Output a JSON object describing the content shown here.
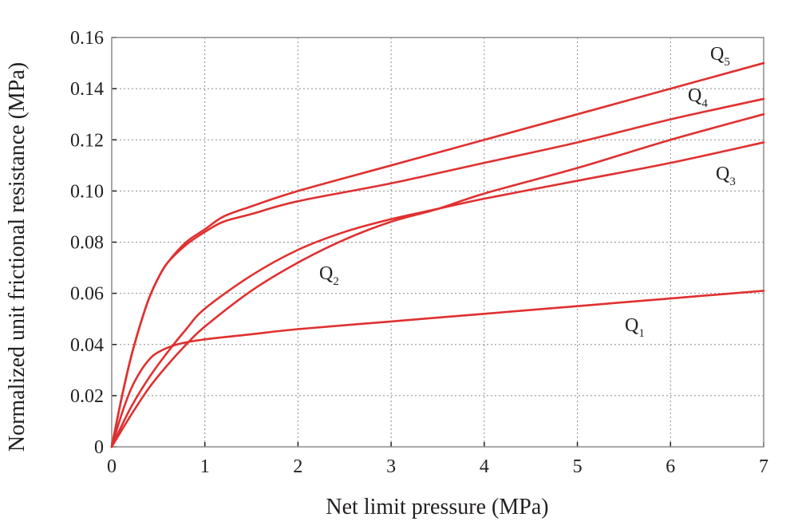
{
  "chart_data": {
    "type": "line",
    "xlabel": "Net limit pressure (MPa)",
    "ylabel": "Normalized unit frictional resistance (MPa)",
    "xlim": [
      0,
      7
    ],
    "ylim": [
      0,
      0.16
    ],
    "x_ticks": [
      "0",
      "1",
      "2",
      "3",
      "4",
      "5",
      "6",
      "7"
    ],
    "y_ticks": [
      "0",
      "0.02",
      "0.04",
      "0.06",
      "0.08",
      "0.10",
      "0.12",
      "0.14",
      "0.16"
    ],
    "grid": true,
    "line_color": "#e03030",
    "series": [
      {
        "name": "Q1",
        "label_main": "Q",
        "label_sub": "1",
        "points": [
          [
            0,
            0
          ],
          [
            0.1,
            0.012
          ],
          [
            0.2,
            0.022
          ],
          [
            0.3,
            0.029
          ],
          [
            0.4,
            0.034
          ],
          [
            0.5,
            0.037
          ],
          [
            0.7,
            0.04
          ],
          [
            1.0,
            0.042
          ],
          [
            1.5,
            0.044
          ],
          [
            2,
            0.046
          ],
          [
            3,
            0.049
          ],
          [
            4,
            0.052
          ],
          [
            5,
            0.055
          ],
          [
            6,
            0.058
          ],
          [
            7,
            0.061
          ]
        ]
      },
      {
        "name": "Q2",
        "label_main": "Q",
        "label_sub": "2",
        "points": [
          [
            0,
            0
          ],
          [
            0.2,
            0.015
          ],
          [
            0.4,
            0.027
          ],
          [
            0.6,
            0.037
          ],
          [
            0.8,
            0.046
          ],
          [
            1.0,
            0.054
          ],
          [
            1.5,
            0.067
          ],
          [
            2,
            0.077
          ],
          [
            2.5,
            0.084
          ],
          [
            3,
            0.089
          ],
          [
            3.5,
            0.093
          ],
          [
            4,
            0.097
          ],
          [
            5,
            0.104
          ],
          [
            6,
            0.111
          ],
          [
            7,
            0.119
          ]
        ]
      },
      {
        "name": "Q3",
        "label_main": "Q",
        "label_sub": "3",
        "points": [
          [
            0,
            0
          ],
          [
            0.2,
            0.012
          ],
          [
            0.4,
            0.023
          ],
          [
            0.6,
            0.032
          ],
          [
            0.8,
            0.04
          ],
          [
            1.0,
            0.047
          ],
          [
            1.5,
            0.061
          ],
          [
            2,
            0.072
          ],
          [
            2.5,
            0.081
          ],
          [
            3,
            0.088
          ],
          [
            3.5,
            0.093
          ],
          [
            4,
            0.099
          ],
          [
            5,
            0.109
          ],
          [
            6,
            0.12
          ],
          [
            7,
            0.13
          ]
        ]
      },
      {
        "name": "Q4",
        "label_main": "Q",
        "label_sub": "4",
        "points": [
          [
            0,
            0
          ],
          [
            0.1,
            0.018
          ],
          [
            0.2,
            0.034
          ],
          [
            0.3,
            0.047
          ],
          [
            0.4,
            0.058
          ],
          [
            0.5,
            0.066
          ],
          [
            0.6,
            0.072
          ],
          [
            0.8,
            0.079
          ],
          [
            1.0,
            0.084
          ],
          [
            1.2,
            0.088
          ],
          [
            1.5,
            0.091
          ],
          [
            2,
            0.096
          ],
          [
            3,
            0.103
          ],
          [
            4,
            0.111
          ],
          [
            5,
            0.119
          ],
          [
            6,
            0.128
          ],
          [
            7,
            0.136
          ]
        ]
      },
      {
        "name": "Q5",
        "label_main": "Q",
        "label_sub": "5",
        "points": [
          [
            0,
            0
          ],
          [
            0.1,
            0.018
          ],
          [
            0.2,
            0.034
          ],
          [
            0.3,
            0.047
          ],
          [
            0.4,
            0.058
          ],
          [
            0.5,
            0.066
          ],
          [
            0.6,
            0.072
          ],
          [
            0.8,
            0.08
          ],
          [
            1.0,
            0.085
          ],
          [
            1.2,
            0.09
          ],
          [
            1.5,
            0.094
          ],
          [
            2,
            0.1
          ],
          [
            3,
            0.11
          ],
          [
            4,
            0.12
          ],
          [
            5,
            0.13
          ],
          [
            6,
            0.14
          ],
          [
            7,
            0.15
          ]
        ]
      }
    ]
  }
}
